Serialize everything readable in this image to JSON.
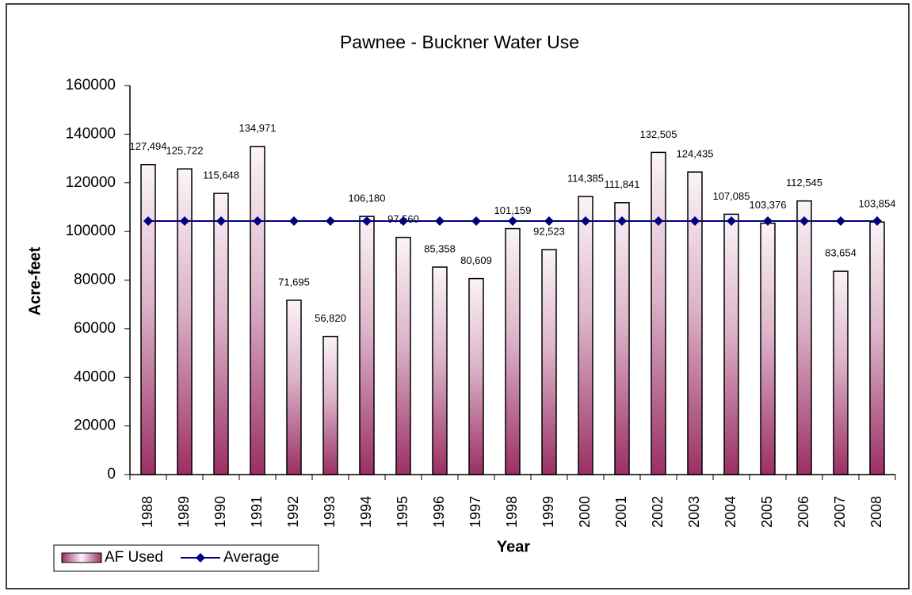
{
  "chart_data": {
    "type": "bar",
    "title": "Pawnee - Buckner Water Use",
    "x_label": "Year",
    "y_label": "Acre-feet",
    "categories": [
      "1988",
      "1989",
      "1990",
      "1991",
      "1992",
      "1993",
      "1994",
      "1995",
      "1996",
      "1997",
      "1998",
      "1999",
      "2000",
      "2001",
      "2002",
      "2003",
      "2004",
      "2005",
      "2006",
      "2007",
      "2008"
    ],
    "series": [
      {
        "name": "AF Used",
        "type": "bar",
        "color": "#9b2f64",
        "values": [
          127494,
          125722,
          115648,
          134971,
          71695,
          56820,
          106180,
          97560,
          85358,
          80609,
          101159,
          92523,
          114385,
          111841,
          132505,
          124435,
          107085,
          103376,
          112545,
          83654,
          103854
        ],
        "value_labels": [
          "127,494",
          "125,722",
          "115,648",
          "134,971",
          "71,695",
          "56,820",
          "106,180",
          "97,560",
          "85,358",
          "80,609",
          "101,159",
          "92,523",
          "114,385",
          "111,841",
          "132,505",
          "124,435",
          "107,085",
          "103,376",
          "112,545",
          "83,654",
          "103,854"
        ]
      },
      {
        "name": "Average",
        "type": "line",
        "color": "#000080",
        "values": [
          104258,
          104258,
          104258,
          104258,
          104258,
          104258,
          104258,
          104258,
          104258,
          104258,
          104258,
          104258,
          104258,
          104258,
          104258,
          104258,
          104258,
          104258,
          104258,
          104258,
          104258
        ]
      }
    ],
    "ylim": [
      0,
      160000
    ],
    "yticks": [
      0,
      20000,
      40000,
      60000,
      80000,
      100000,
      120000,
      140000,
      160000
    ],
    "grid": false,
    "legend": "bottom-left"
  }
}
